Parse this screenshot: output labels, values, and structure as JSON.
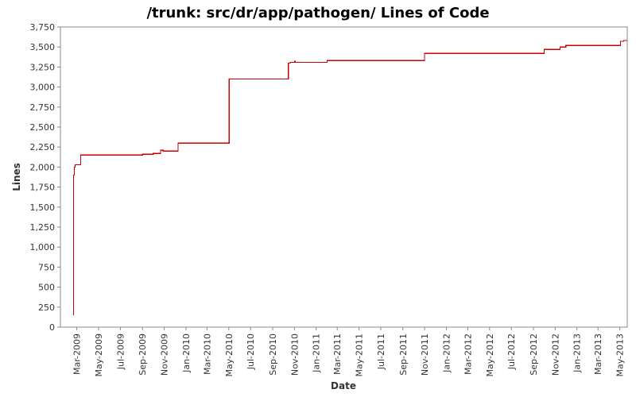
{
  "chart_data": {
    "type": "line",
    "title": "/trunk: src/dr/app/pathogen/ Lines of Code",
    "xlabel": "Date",
    "ylabel": "Lines",
    "step": true,
    "grid": false,
    "legend": "none",
    "line_color": "#cc0000",
    "ylim": [
      0,
      3750
    ],
    "xlim": [
      "2009-01-14",
      "2013-05-22"
    ],
    "y_ticks": [
      0,
      250,
      500,
      750,
      1000,
      1250,
      1500,
      1750,
      2000,
      2250,
      2500,
      2750,
      3000,
      3250,
      3500,
      3750
    ],
    "y_tick_labels": [
      "0",
      "250",
      "500",
      "750",
      "1,000",
      "1,250",
      "1,500",
      "1,750",
      "2,000",
      "2,250",
      "2,500",
      "2,750",
      "3,000",
      "3,250",
      "3,500",
      "3,750"
    ],
    "x_ticks": [
      "2009-03-01",
      "2009-05-01",
      "2009-07-01",
      "2009-09-01",
      "2009-11-01",
      "2010-01-01",
      "2010-03-01",
      "2010-05-01",
      "2010-07-01",
      "2010-09-01",
      "2010-11-01",
      "2011-01-01",
      "2011-03-01",
      "2011-05-01",
      "2011-07-01",
      "2011-09-01",
      "2011-11-01",
      "2012-01-01",
      "2012-03-01",
      "2012-05-01",
      "2012-07-01",
      "2012-09-01",
      "2012-11-01",
      "2013-01-01",
      "2013-03-01",
      "2013-05-01"
    ],
    "x_tick_labels": [
      "Mar-2009",
      "May-2009",
      "Jul-2009",
      "Sep-2009",
      "Nov-2009",
      "Jan-2010",
      "Mar-2010",
      "May-2010",
      "Jul-2010",
      "Sep-2010",
      "Nov-2010",
      "Jan-2011",
      "Mar-2011",
      "May-2011",
      "Jul-2011",
      "Sep-2011",
      "Nov-2011",
      "Jan-2012",
      "Mar-2012",
      "May-2012",
      "Jul-2012",
      "Sep-2012",
      "Nov-2012",
      "Jan-2013",
      "Mar-2013",
      "May-2013"
    ],
    "series": [
      {
        "points": [
          [
            "2009-02-20",
            150
          ],
          [
            "2009-02-20",
            1900
          ],
          [
            "2009-02-22",
            2000
          ],
          [
            "2009-02-24",
            2030
          ],
          [
            "2009-03-12",
            2150
          ],
          [
            "2009-09-01",
            2160
          ],
          [
            "2009-10-01",
            2170
          ],
          [
            "2009-10-22",
            2210
          ],
          [
            "2009-10-29",
            2200
          ],
          [
            "2009-12-10",
            2300
          ],
          [
            "2010-05-02",
            3100
          ],
          [
            "2010-10-15",
            3300
          ],
          [
            "2010-10-20",
            3310
          ],
          [
            "2010-11-01",
            3320
          ],
          [
            "2010-11-03",
            3310
          ],
          [
            "2011-02-01",
            3330
          ],
          [
            "2011-11-01",
            3420
          ],
          [
            "2012-10-01",
            3470
          ],
          [
            "2012-11-15",
            3500
          ],
          [
            "2012-12-01",
            3520
          ],
          [
            "2013-05-03",
            3570
          ],
          [
            "2013-05-12",
            3580
          ]
        ]
      }
    ]
  }
}
